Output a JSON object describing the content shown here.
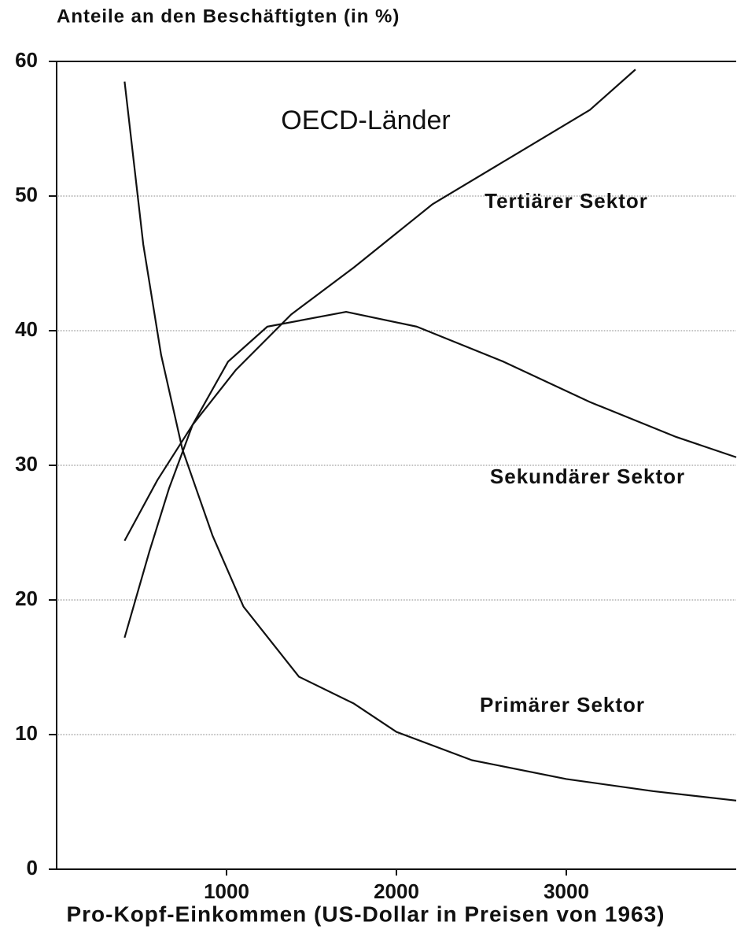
{
  "chart_data": {
    "type": "line",
    "title": "OECD-Länder",
    "ylabel": "Anteile an den Beschäftigten (in %)",
    "xlabel": "Pro-Kopf-Einkommen (US-Dollar in Preisen von 1963)",
    "xlim": [
      0,
      4000
    ],
    "ylim": [
      0,
      60
    ],
    "xticks": [
      1000,
      2000,
      3000
    ],
    "yticks": [
      0,
      10,
      20,
      30,
      40,
      50,
      60
    ],
    "grid": true,
    "series": [
      {
        "name": "Tertiärer Sektor",
        "color": "#111111",
        "x": [
          400,
          593,
          800,
          1056,
          1380,
          1750,
          2213,
          2676,
          3139,
          3407
        ],
        "values": [
          24.4,
          28.9,
          33,
          37.1,
          41.2,
          44.7,
          49.4,
          52.9,
          56.4,
          59.4
        ]
      },
      {
        "name": "Sekundärer Sektor",
        "color": "#111111",
        "x": [
          400,
          546,
          662,
          800,
          1009,
          1240,
          1704,
          2120,
          2630,
          3139,
          3648,
          4000
        ],
        "values": [
          17.2,
          23.6,
          28.3,
          33,
          37.7,
          40.3,
          41.4,
          40.3,
          37.7,
          34.7,
          32.1,
          30.6
        ]
      },
      {
        "name": "Primärer Sektor",
        "color": "#111111",
        "x": [
          400,
          510,
          615,
          740,
          917,
          1100,
          1426,
          1750,
          2000,
          2444,
          3000,
          3509,
          4000
        ],
        "values": [
          58.5,
          46.4,
          38.2,
          31.2,
          24.8,
          19.5,
          14.3,
          12.3,
          10.2,
          8.1,
          6.7,
          5.8,
          5.1
        ]
      }
    ]
  }
}
